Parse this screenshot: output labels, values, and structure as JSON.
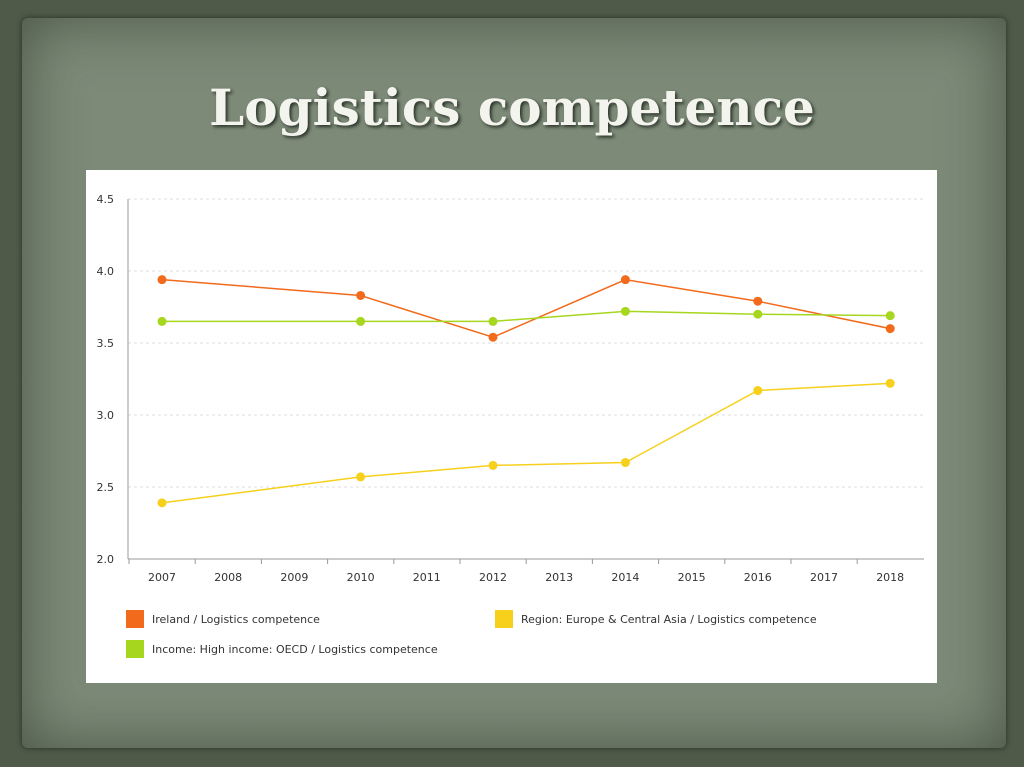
{
  "slide": {
    "title": "Logistics competence"
  },
  "chart_data": {
    "type": "line",
    "title": "",
    "xlabel": "",
    "ylabel": "",
    "x": [
      2007,
      2008,
      2009,
      2010,
      2011,
      2012,
      2013,
      2014,
      2015,
      2016,
      2017,
      2018
    ],
    "x_ticks": [
      "2007",
      "2008",
      "2009",
      "2010",
      "2011",
      "2012",
      "2013",
      "2014",
      "2015",
      "2016",
      "2017",
      "2018"
    ],
    "y_ticks": [
      "2.0",
      "2.5",
      "3.0",
      "3.5",
      "4.0",
      "4.5"
    ],
    "ylim": [
      2.0,
      4.5
    ],
    "grid": "horizontal dashed",
    "legend_placement": "bottom",
    "series": [
      {
        "name": "Ireland / Logistics competence",
        "color": "#f26a1b",
        "x": [
          2007,
          2010,
          2012,
          2014,
          2016,
          2018
        ],
        "values": [
          3.94,
          3.83,
          3.54,
          3.94,
          3.79,
          3.6
        ]
      },
      {
        "name": "Region: Europe & Central Asia / Logistics competence",
        "color": "#f7d01c",
        "x": [
          2007,
          2010,
          2012,
          2014,
          2016,
          2018
        ],
        "values": [
          2.39,
          2.57,
          2.65,
          2.67,
          3.17,
          3.22
        ]
      },
      {
        "name": "Income: High income: OECD / Logistics competence",
        "color": "#a6d61d",
        "x": [
          2007,
          2010,
          2012,
          2014,
          2016,
          2018
        ],
        "values": [
          3.65,
          3.65,
          3.65,
          3.72,
          3.7,
          3.69
        ]
      }
    ]
  }
}
